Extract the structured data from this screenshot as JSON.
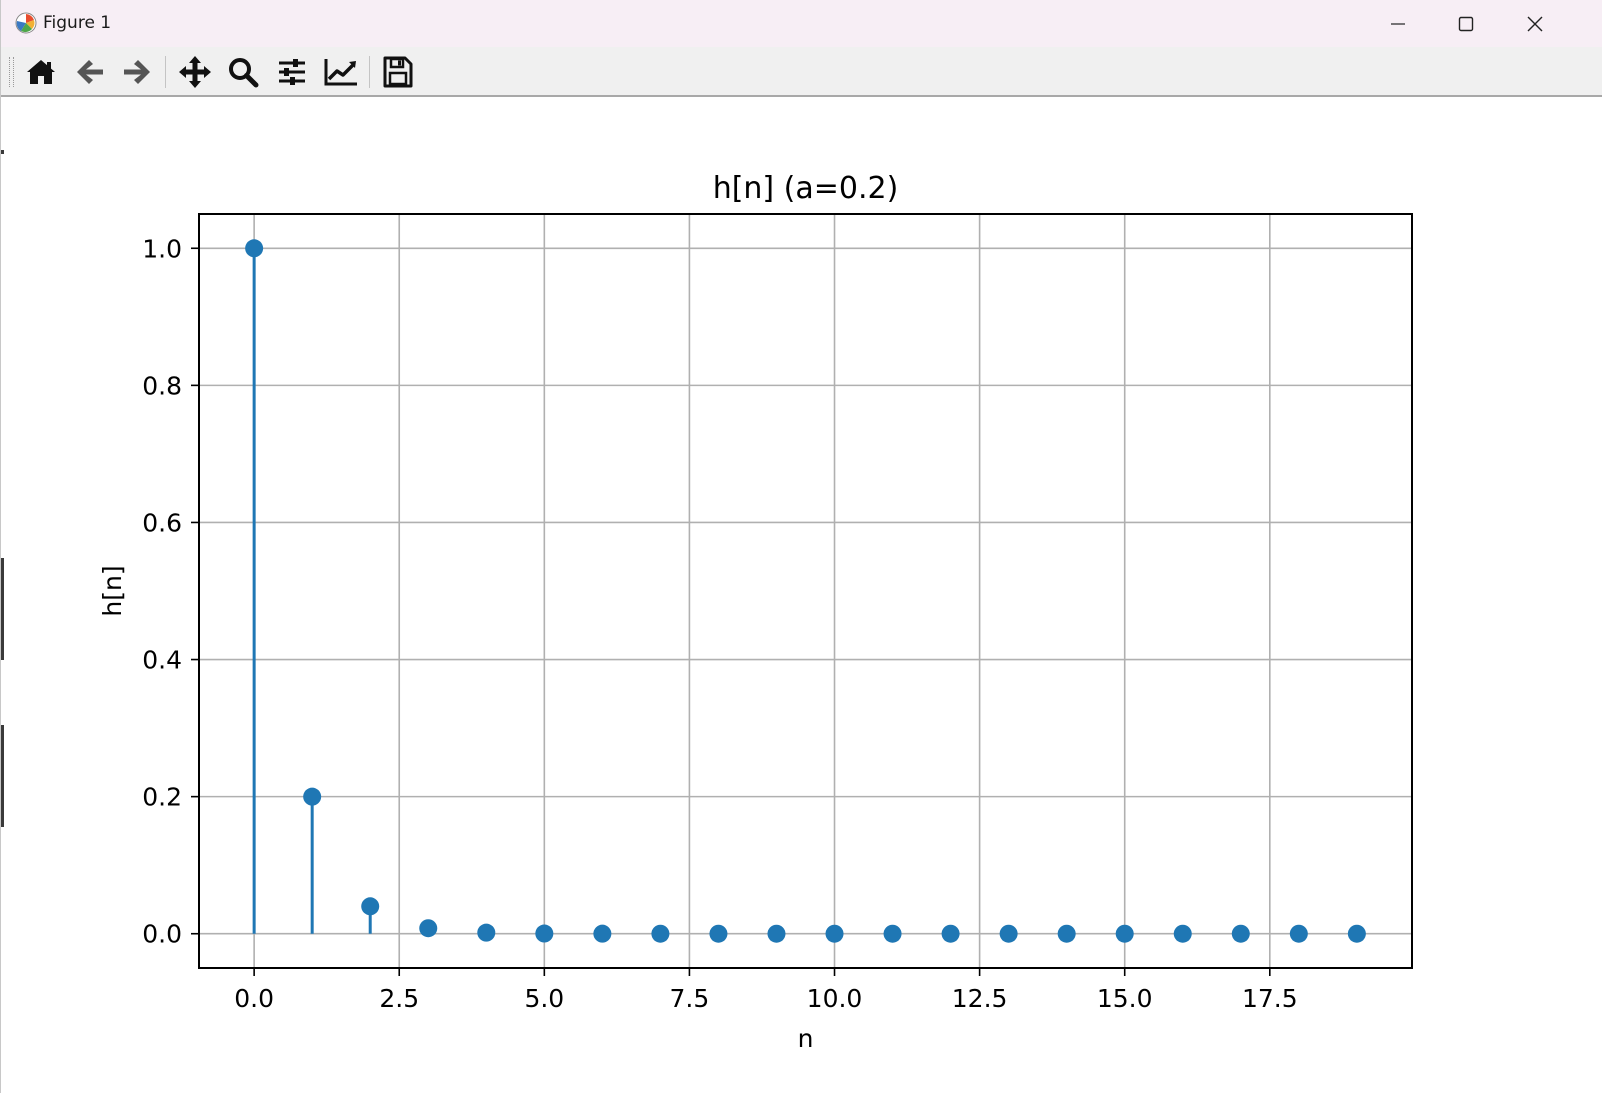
{
  "window": {
    "title": "Figure 1",
    "controls": {
      "minimize": "minimize-icon",
      "maximize": "maximize-icon",
      "close": "close-icon"
    }
  },
  "toolbar": {
    "buttons": [
      {
        "name": "home-button",
        "icon": "home-icon"
      },
      {
        "name": "back-button",
        "icon": "arrow-left-icon"
      },
      {
        "name": "forward-button",
        "icon": "arrow-right-icon"
      },
      {
        "name": "pan-button",
        "icon": "move-icon"
      },
      {
        "name": "zoom-button",
        "icon": "magnifier-icon"
      },
      {
        "name": "configure-subplots-button",
        "icon": "sliders-icon"
      },
      {
        "name": "edit-axes-button",
        "icon": "line-chart-icon"
      },
      {
        "name": "save-button",
        "icon": "floppy-disk-icon"
      }
    ]
  },
  "chart_data": {
    "type": "stem",
    "title": "h[n] (a=0.2)",
    "xlabel": "n",
    "ylabel": "h[n]",
    "x": [
      0,
      1,
      2,
      3,
      4,
      5,
      6,
      7,
      8,
      9,
      10,
      11,
      12,
      13,
      14,
      15,
      16,
      17,
      18,
      19
    ],
    "y": [
      1.0,
      0.2,
      0.04,
      0.008,
      0.0016,
      0.00032,
      6.4e-05,
      1.28e-05,
      2.56e-06,
      5.12e-07,
      1.024e-07,
      2.048e-08,
      4.096e-09,
      8.192e-10,
      1.6384e-10,
      3.2768e-11,
      6.5536e-12,
      1.31072e-12,
      2.62144e-13,
      5.24288e-14
    ],
    "xlim": [
      -0.95,
      19.95
    ],
    "ylim": [
      -0.05,
      1.05
    ],
    "xticks": [
      0.0,
      2.5,
      5.0,
      7.5,
      10.0,
      12.5,
      15.0,
      17.5
    ],
    "xtick_labels": [
      "0.0",
      "2.5",
      "5.0",
      "7.5",
      "10.0",
      "12.5",
      "15.0",
      "17.5"
    ],
    "yticks": [
      0.0,
      0.2,
      0.4,
      0.6,
      0.8,
      1.0
    ],
    "ytick_labels": [
      "0.0",
      "0.2",
      "0.4",
      "0.6",
      "0.8",
      "1.0"
    ],
    "grid": true,
    "color": "#1f77b4",
    "grid_color": "#b0b0b0"
  }
}
